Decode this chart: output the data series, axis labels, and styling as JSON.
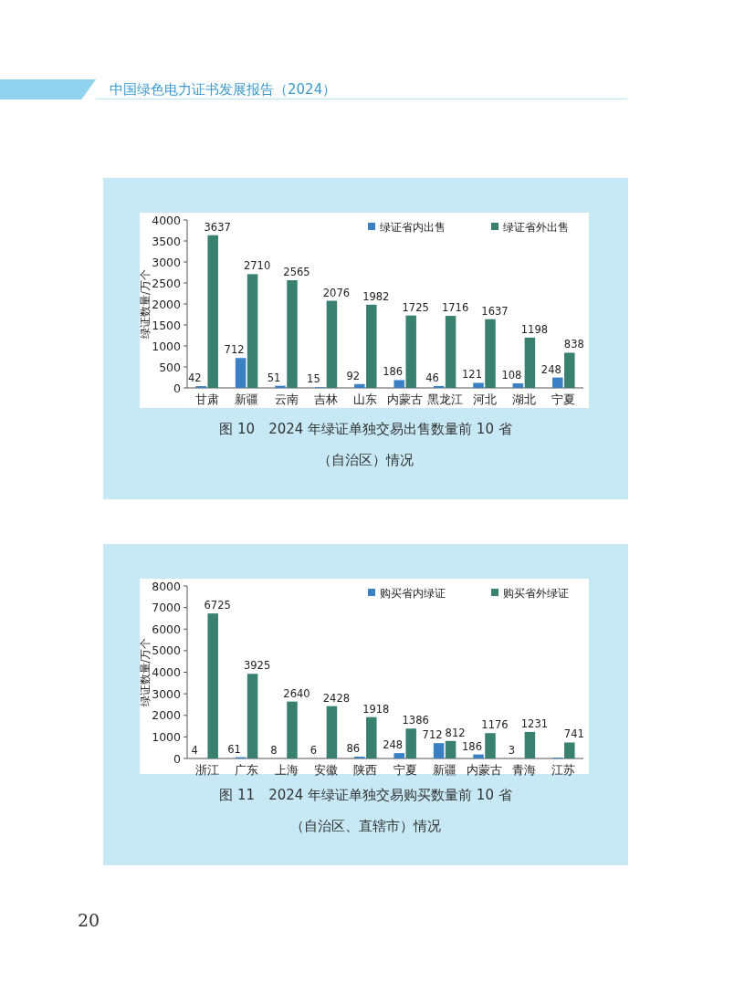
{
  "chart_data": [
    {
      "type": "bar",
      "title": "图 10　2024 年绿证单独交易出售数量前 10 省（自治区）情况",
      "ylabel": "绿证数量/万个",
      "annotations": [
        "中国绿色电力证书发展报告（2024）"
      ],
      "categories": [
        "甘肃",
        "新疆",
        "云南",
        "吉林",
        "山东",
        "内蒙古",
        "黑龙江",
        "河北",
        "湖北",
        "宁夏"
      ],
      "series": [
        {
          "name": "绿证省内出售",
          "color": "#3a80c2",
          "values": [
            42,
            712,
            51,
            15,
            92,
            186,
            46,
            121,
            108,
            248
          ]
        },
        {
          "name": "绿证省外出售",
          "color": "#3a8070",
          "values": [
            3637,
            2710,
            2565,
            2076,
            1982,
            1725,
            1716,
            1637,
            1198,
            838
          ]
        }
      ],
      "ylim": [
        0,
        4000
      ],
      "yticks": [
        0,
        500,
        1000,
        1500,
        2000,
        2500,
        3000,
        3500,
        4000
      ],
      "data_labels": true,
      "legend": "top right"
    },
    {
      "type": "bar",
      "title": "图 11　2024 年绿证单独交易购买数量前 10 省（自治区、直辖市）情况",
      "ylabel": "绿证数量/万个",
      "annotations": [
        "20"
      ],
      "categories": [
        "浙江",
        "广东",
        "上海",
        "安徽",
        "陕西",
        "宁夏",
        "新疆",
        "内蒙古",
        "青海",
        "江苏"
      ],
      "series": [
        {
          "name": "购买省内绿证",
          "color": "#3a80c2",
          "values": [
            4,
            61,
            8,
            6,
            86,
            248,
            712,
            186,
            3,
            40
          ],
          "value_labels": [
            "4",
            "61",
            "8",
            "6",
            "86",
            "248",
            "712",
            "186",
            "3",
            null
          ]
        },
        {
          "name": "购买省外绿证",
          "color": "#3a8070",
          "values": [
            6725,
            3925,
            2640,
            2428,
            1918,
            1386,
            812,
            1176,
            1231,
            741
          ],
          "value_labels": [
            "6725",
            "3925",
            "2640",
            "2428",
            "1918",
            "1386",
            "812",
            "1176",
            "1231",
            "741"
          ]
        }
      ],
      "ylim": [
        0,
        8000
      ],
      "yticks": [
        0,
        1000,
        2000,
        3000,
        4000,
        5000,
        6000,
        7000,
        8000
      ],
      "legend": "top right"
    }
  ]
}
